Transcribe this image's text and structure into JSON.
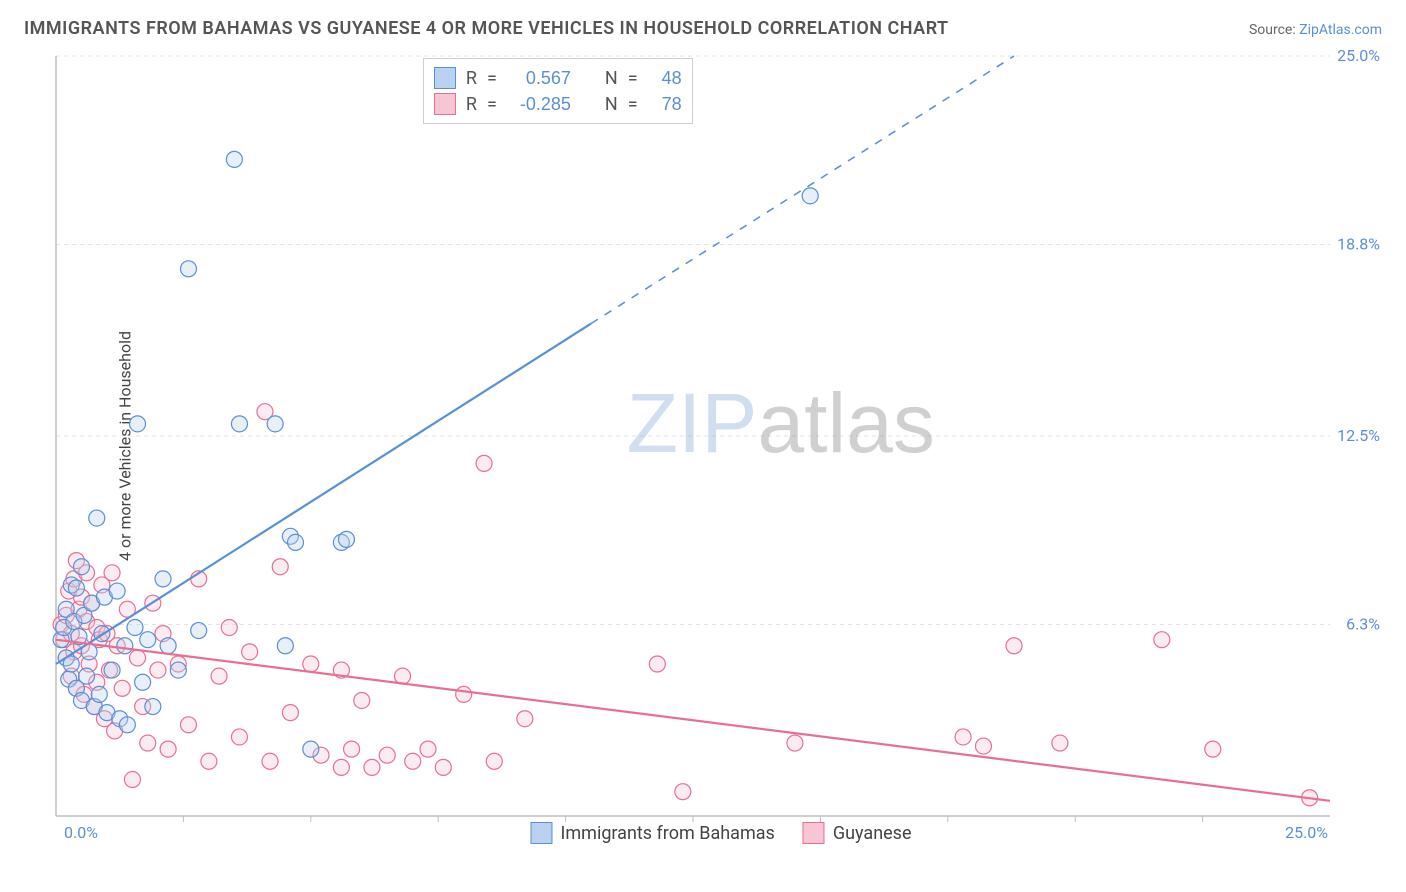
{
  "title": "IMMIGRANTS FROM BAHAMAS VS GUYANESE 4 OR MORE VEHICLES IN HOUSEHOLD CORRELATION CHART",
  "source_label": "Source: ",
  "source_name": "ZipAtlas.com",
  "ylabel": "4 or more Vehicles in Household",
  "watermark_a": "ZIP",
  "watermark_b": "atlas",
  "chart": {
    "type": "scatter",
    "xlim": [
      0,
      25
    ],
    "ylim": [
      0,
      25
    ],
    "x_ticks": [
      {
        "v": 0,
        "label": "0.0%"
      },
      {
        "v": 25,
        "label": "25.0%"
      }
    ],
    "y_ticks": [
      {
        "v": 6.3,
        "label": "6.3%"
      },
      {
        "v": 12.5,
        "label": "12.5%"
      },
      {
        "v": 18.8,
        "label": "18.8%"
      },
      {
        "v": 25,
        "label": "25.0%"
      }
    ],
    "x_minor_step": 2.5,
    "tick_label_color": "#5a8fd6",
    "tick_label_fontsize": 16,
    "grid_color": "#e3e3e3",
    "axis_color": "#bfbfbf",
    "background": "#ffffff",
    "marker_radius": 8,
    "marker_stroke_width": 1.2,
    "marker_fill_opacity": 0.35,
    "series": [
      {
        "id": "bahamas",
        "legend_label": "Immigrants from Bahamas",
        "color_stroke": "#5a8fd6",
        "color_fill": "#b9d2ef",
        "R": "0.567",
        "N": "48",
        "trend": {
          "solid_from": [
            0,
            5.0
          ],
          "solid_to": [
            10.5,
            16.2
          ],
          "dash_to": [
            18.8,
            25.0
          ],
          "width": 2.2
        },
        "points": [
          [
            0.1,
            5.8
          ],
          [
            0.15,
            6.2
          ],
          [
            0.2,
            5.2
          ],
          [
            0.2,
            6.8
          ],
          [
            0.25,
            4.5
          ],
          [
            0.3,
            7.6
          ],
          [
            0.3,
            5.0
          ],
          [
            0.35,
            6.4
          ],
          [
            0.4,
            7.5
          ],
          [
            0.4,
            4.2
          ],
          [
            0.45,
            5.9
          ],
          [
            0.5,
            8.2
          ],
          [
            0.5,
            3.8
          ],
          [
            0.55,
            6.6
          ],
          [
            0.6,
            4.6
          ],
          [
            0.65,
            5.4
          ],
          [
            0.7,
            7.0
          ],
          [
            0.75,
            3.6
          ],
          [
            0.8,
            9.8
          ],
          [
            0.85,
            4.0
          ],
          [
            0.9,
            6.0
          ],
          [
            0.95,
            7.2
          ],
          [
            1.0,
            3.4
          ],
          [
            1.1,
            4.8
          ],
          [
            1.2,
            7.4
          ],
          [
            1.25,
            3.2
          ],
          [
            1.35,
            5.6
          ],
          [
            1.4,
            3.0
          ],
          [
            1.55,
            6.2
          ],
          [
            1.6,
            12.9
          ],
          [
            1.7,
            4.4
          ],
          [
            1.8,
            5.8
          ],
          [
            1.9,
            3.6
          ],
          [
            2.1,
            7.8
          ],
          [
            2.2,
            5.6
          ],
          [
            2.4,
            4.8
          ],
          [
            2.6,
            18.0
          ],
          [
            2.8,
            6.1
          ],
          [
            3.5,
            21.6
          ],
          [
            3.6,
            12.9
          ],
          [
            4.3,
            12.9
          ],
          [
            4.5,
            5.6
          ],
          [
            4.6,
            9.2
          ],
          [
            4.7,
            9.0
          ],
          [
            5.0,
            2.2
          ],
          [
            5.6,
            9.0
          ],
          [
            5.7,
            9.1
          ],
          [
            14.8,
            20.4
          ]
        ]
      },
      {
        "id": "guyanese",
        "legend_label": "Guyanese",
        "color_stroke": "#e86f92",
        "color_fill": "#f6c6d4",
        "R": "-0.285",
        "N": "78",
        "trend": {
          "solid_from": [
            0,
            5.8
          ],
          "solid_to": [
            25,
            0.5
          ],
          "width": 2.2
        },
        "points": [
          [
            0.1,
            6.3
          ],
          [
            0.15,
            5.8
          ],
          [
            0.2,
            6.6
          ],
          [
            0.2,
            5.2
          ],
          [
            0.25,
            7.4
          ],
          [
            0.3,
            4.6
          ],
          [
            0.3,
            6.0
          ],
          [
            0.35,
            7.8
          ],
          [
            0.35,
            5.4
          ],
          [
            0.4,
            8.4
          ],
          [
            0.4,
            4.2
          ],
          [
            0.45,
            6.8
          ],
          [
            0.5,
            5.6
          ],
          [
            0.5,
            7.2
          ],
          [
            0.55,
            4.0
          ],
          [
            0.6,
            6.4
          ],
          [
            0.6,
            8.0
          ],
          [
            0.65,
            5.0
          ],
          [
            0.7,
            7.0
          ],
          [
            0.75,
            3.6
          ],
          [
            0.8,
            6.2
          ],
          [
            0.8,
            4.4
          ],
          [
            0.85,
            5.8
          ],
          [
            0.9,
            7.6
          ],
          [
            0.95,
            3.2
          ],
          [
            1.0,
            6.0
          ],
          [
            1.05,
            4.8
          ],
          [
            1.1,
            8.0
          ],
          [
            1.15,
            2.8
          ],
          [
            1.2,
            5.6
          ],
          [
            1.3,
            4.2
          ],
          [
            1.4,
            6.8
          ],
          [
            1.5,
            1.2
          ],
          [
            1.6,
            5.2
          ],
          [
            1.7,
            3.6
          ],
          [
            1.8,
            2.4
          ],
          [
            1.9,
            7.0
          ],
          [
            2.0,
            4.8
          ],
          [
            2.1,
            6.0
          ],
          [
            2.2,
            2.2
          ],
          [
            2.4,
            5.0
          ],
          [
            2.6,
            3.0
          ],
          [
            2.8,
            7.8
          ],
          [
            3.0,
            1.8
          ],
          [
            3.2,
            4.6
          ],
          [
            3.4,
            6.2
          ],
          [
            3.6,
            2.6
          ],
          [
            3.8,
            5.4
          ],
          [
            4.1,
            13.3
          ],
          [
            4.2,
            1.8
          ],
          [
            4.4,
            8.2
          ],
          [
            4.6,
            3.4
          ],
          [
            5.0,
            5.0
          ],
          [
            5.2,
            2.0
          ],
          [
            5.6,
            1.6
          ],
          [
            5.6,
            4.8
          ],
          [
            5.8,
            2.2
          ],
          [
            6.0,
            3.8
          ],
          [
            6.2,
            1.6
          ],
          [
            6.5,
            2.0
          ],
          [
            6.8,
            4.6
          ],
          [
            7.0,
            1.8
          ],
          [
            7.3,
            2.2
          ],
          [
            7.6,
            1.6
          ],
          [
            8.0,
            4.0
          ],
          [
            8.4,
            11.6
          ],
          [
            8.6,
            1.8
          ],
          [
            9.2,
            3.2
          ],
          [
            11.8,
            5.0
          ],
          [
            12.3,
            0.8
          ],
          [
            14.5,
            2.4
          ],
          [
            17.8,
            2.6
          ],
          [
            18.2,
            2.3
          ],
          [
            18.8,
            5.6
          ],
          [
            19.7,
            2.4
          ],
          [
            21.7,
            5.8
          ],
          [
            22.7,
            2.2
          ],
          [
            24.6,
            0.6
          ]
        ]
      }
    ]
  },
  "corr_box": {
    "R_label": "R",
    "N_label": "N",
    "eq": "="
  },
  "bottom_legend_order": [
    "bahamas",
    "guyanese"
  ]
}
